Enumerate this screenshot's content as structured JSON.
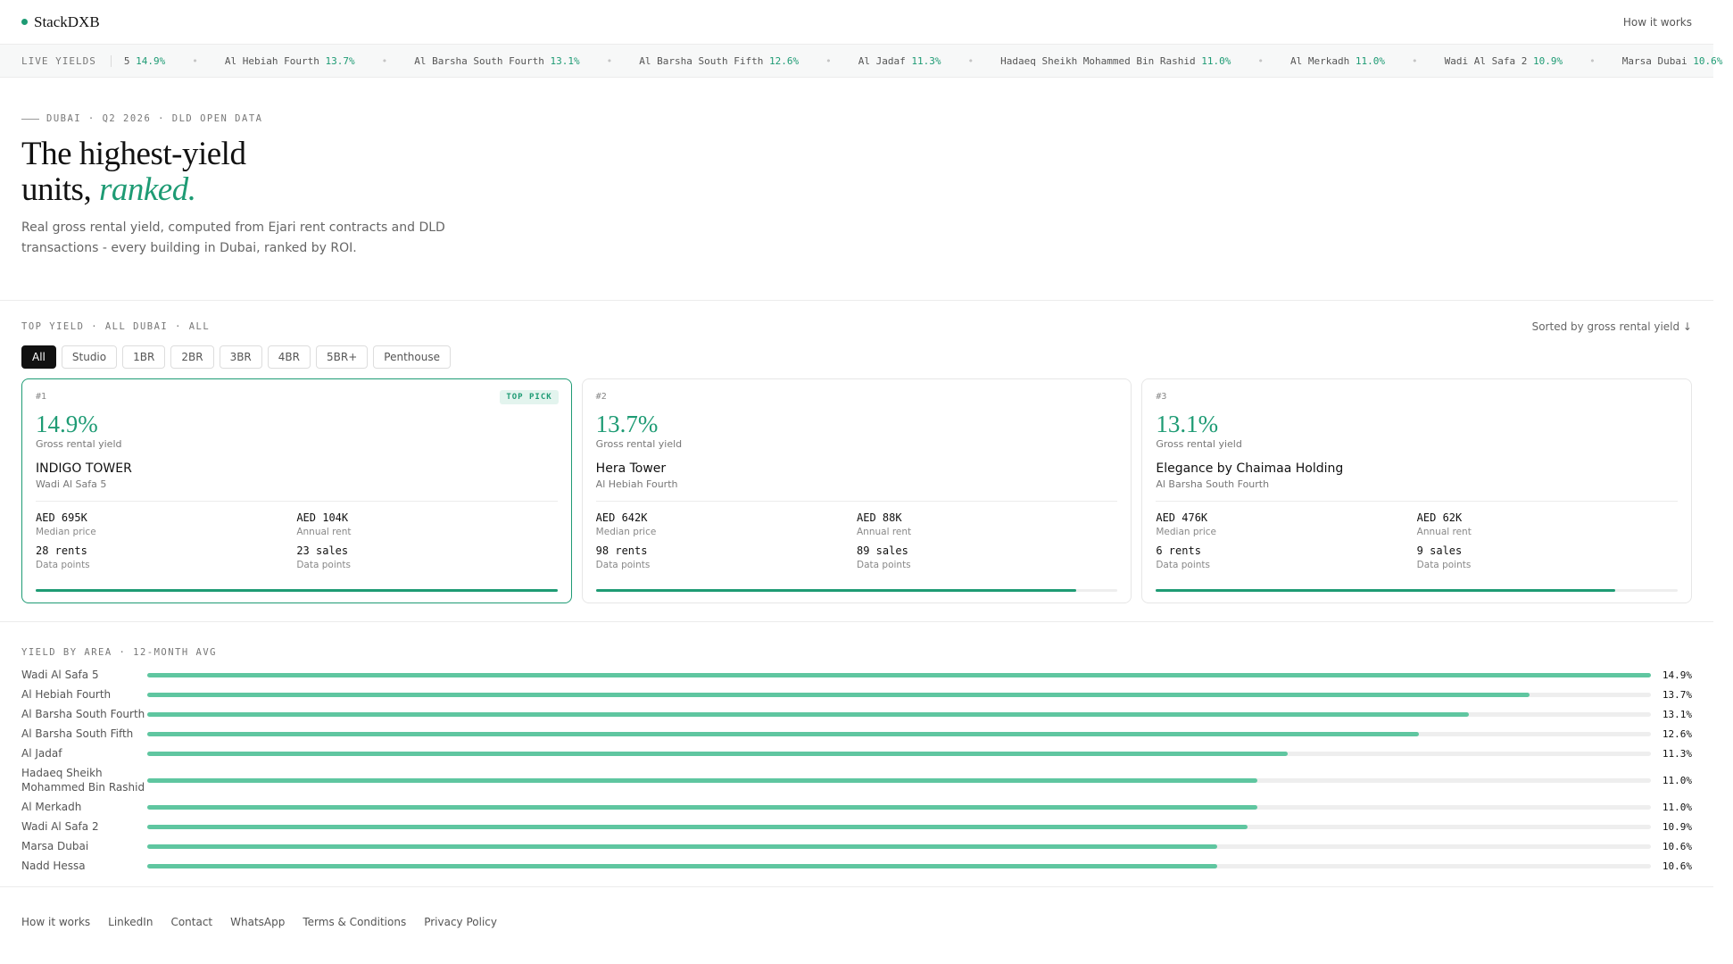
{
  "header": {
    "brand": "StackDXB",
    "nav_link": "How it works"
  },
  "ticker": {
    "label": "LIVE YIELDS",
    "items": [
      {
        "name": "5",
        "value": "14.9%"
      },
      {
        "name": "Al Hebiah Fourth",
        "value": "13.7%"
      },
      {
        "name": "Al Barsha South Fourth",
        "value": "13.1%"
      },
      {
        "name": "Al Barsha South Fifth",
        "value": "12.6%"
      },
      {
        "name": "Al Jadaf",
        "value": "11.3%"
      },
      {
        "name": "Hadaeq Sheikh Mohammed Bin Rashid",
        "value": "11.0%"
      },
      {
        "name": "Al Merkadh",
        "value": "11.0%"
      },
      {
        "name": "Wadi Al Safa 2",
        "value": "10.9%"
      },
      {
        "name": "Marsa Dubai",
        "value": "10.6%"
      }
    ],
    "separator": "•"
  },
  "hero": {
    "eyebrow": "DUBAI · Q2 2026 · DLD OPEN DATA",
    "title_line1": "The highest-yield",
    "title_line2_plain": "units, ",
    "title_line2_accent": "ranked.",
    "description": "Real gross rental yield, computed from Ejari rent contracts and DLD transactions - every building in Dubai, ranked by ROI."
  },
  "top_yield": {
    "label": "TOP YIELD · ALL DUBAI · ALL",
    "sort_label": "Sorted by gross rental yield ↓",
    "filters": [
      "All",
      "Studio",
      "1BR",
      "2BR",
      "3BR",
      "4BR",
      "5BR+",
      "Penthouse"
    ],
    "active_filter": "All",
    "badge": "TOP PICK",
    "yield_label": "Gross rental yield",
    "median_label": "Median price",
    "rent_label": "Annual rent",
    "points_label": "Data points",
    "cards": [
      {
        "rank": "#1",
        "yield": "14.9%",
        "name": "INDIGO TOWER",
        "area": "Wadi Al Safa 5",
        "median": "AED 695K",
        "rent": "AED 104K",
        "rents": "28 rents",
        "sales": "23 sales",
        "fill": 1.0
      },
      {
        "rank": "#2",
        "yield": "13.7%",
        "name": "Hera Tower",
        "area": "Al Hebiah Fourth",
        "median": "AED 642K",
        "rent": "AED 88K",
        "rents": "98 rents",
        "sales": "89 sales",
        "fill": 0.92
      },
      {
        "rank": "#3",
        "yield": "13.1%",
        "name": "Elegance by Chaimaa Holding",
        "area": "Al Barsha South Fourth",
        "median": "AED 476K",
        "rent": "AED 62K",
        "rents": "6 rents",
        "sales": "9 sales",
        "fill": 0.88
      }
    ]
  },
  "yield_by_area": {
    "label": "YIELD BY AREA · 12-MONTH AVG",
    "max": 14.9,
    "rows": [
      {
        "name": "Wadi Al Safa 5",
        "value": 14.9,
        "display": "14.9%"
      },
      {
        "name": "Al Hebiah Fourth",
        "value": 13.7,
        "display": "13.7%"
      },
      {
        "name": "Al Barsha South Fourth",
        "value": 13.1,
        "display": "13.1%"
      },
      {
        "name": "Al Barsha South Fifth",
        "value": 12.6,
        "display": "12.6%"
      },
      {
        "name": "Al Jadaf",
        "value": 11.3,
        "display": "11.3%"
      },
      {
        "name": "Hadaeq Sheikh Mohammed Bin Rashid",
        "value": 11.0,
        "display": "11.0%"
      },
      {
        "name": "Al Merkadh",
        "value": 11.0,
        "display": "11.0%"
      },
      {
        "name": "Wadi Al Safa 2",
        "value": 10.9,
        "display": "10.9%"
      },
      {
        "name": "Marsa Dubai",
        "value": 10.6,
        "display": "10.6%"
      },
      {
        "name": "Nadd Hessa",
        "value": 10.6,
        "display": "10.6%"
      }
    ]
  },
  "footer": {
    "links": [
      "How it works",
      "LinkedIn",
      "Contact",
      "WhatsApp",
      "Terms & Conditions",
      "Privacy Policy"
    ]
  },
  "colors": {
    "accent": "#1e9b74",
    "bar": "#5fc6a0"
  }
}
